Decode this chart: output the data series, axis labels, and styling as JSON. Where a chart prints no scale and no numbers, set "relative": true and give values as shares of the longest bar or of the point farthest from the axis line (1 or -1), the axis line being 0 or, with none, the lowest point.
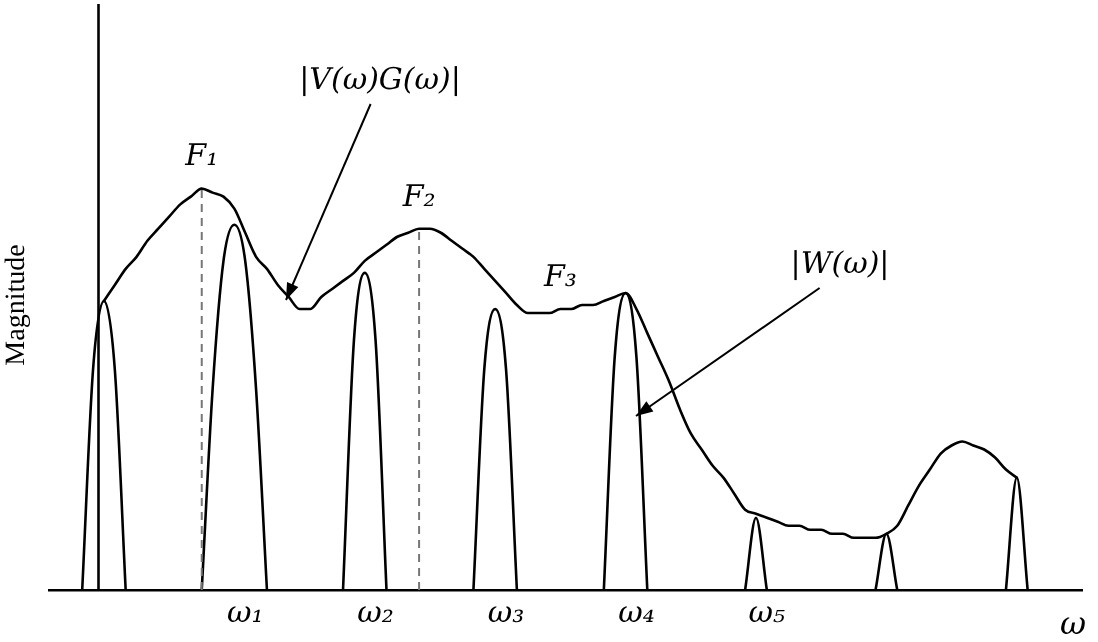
{
  "chart_data": {
    "type": "line",
    "relative": true,
    "xlabel": "ω",
    "ylabel": "Magnitude",
    "marker": "none",
    "grid": false,
    "legend": false,
    "categories": [
      null,
      null,
      null,
      null,
      null,
      null,
      null,
      null,
      null,
      null,
      null,
      null,
      null,
      null,
      null,
      null,
      null,
      null,
      "ω₁",
      null,
      null,
      null,
      null,
      null,
      null,
      null,
      null,
      null,
      null,
      null,
      "ω₂",
      null,
      null,
      null,
      null,
      null,
      null,
      null,
      null,
      null,
      null,
      null,
      "ω₃",
      null,
      null,
      null,
      null,
      null,
      null,
      null,
      null,
      null,
      null,
      null,
      "ω₄",
      null,
      null,
      null,
      null,
      null,
      null,
      null,
      null,
      null,
      null,
      null,
      "ω₅",
      null,
      null,
      null,
      null,
      null,
      null,
      null,
      null,
      null,
      null,
      null,
      null,
      null,
      null,
      null,
      null,
      null,
      null,
      null,
      null,
      null,
      null,
      null,
      null,
      null,
      null,
      null,
      null,
      null
    ],
    "series": [
      {
        "color": "#000000",
        "values": [
          null,
          null,
          null,
          null,
          null,
          0.72,
          0.76,
          0.8,
          0.83,
          0.87,
          0.9,
          0.93,
          0.96,
          0.98,
          1.0,
          0.99,
          0.98,
          0.95,
          0.89,
          0.83,
          0.8,
          0.76,
          0.73,
          0.7,
          0.7,
          0.73,
          0.75,
          0.77,
          0.79,
          0.82,
          0.84,
          0.86,
          0.88,
          0.89,
          0.9,
          0.9,
          0.89,
          0.87,
          0.85,
          0.83,
          0.8,
          0.77,
          0.74,
          0.71,
          0.69,
          0.69,
          0.69,
          0.7,
          0.7,
          0.71,
          0.71,
          0.72,
          0.73,
          0.74,
          0.7,
          0.64,
          0.58,
          0.52,
          0.45,
          0.39,
          0.35,
          0.31,
          0.28,
          0.24,
          0.2,
          0.19,
          0.18,
          0.17,
          0.16,
          0.16,
          0.15,
          0.15,
          0.14,
          0.14,
          0.13,
          0.13,
          0.13,
          0.14,
          0.16,
          0.21,
          0.26,
          0.3,
          0.34,
          0.36,
          0.37,
          0.36,
          0.35,
          0.33,
          0.3,
          0.28,
          null,
          null,
          null,
          null,
          null,
          null
        ]
      },
      {
        "color": "#000000",
        "values": [
          null,
          null,
          null,
          0,
          0.55,
          0.72,
          0.55,
          0,
          null,
          null,
          null,
          null,
          null,
          null,
          0,
          0.5,
          0.82,
          0.91,
          0.82,
          0.5,
          0,
          null,
          null,
          null,
          null,
          null,
          null,
          0,
          0.62,
          0.79,
          0.62,
          0,
          null,
          null,
          null,
          null,
          null,
          null,
          null,
          0,
          0.55,
          0.7,
          0.55,
          0,
          null,
          null,
          null,
          null,
          null,
          null,
          null,
          0,
          0.58,
          0.74,
          0.58,
          0,
          null,
          null,
          null,
          null,
          null,
          null,
          null,
          null,
          0,
          0.18,
          0,
          null,
          null,
          null,
          null,
          null,
          null,
          null,
          null,
          null,
          0,
          0.14,
          0,
          null,
          null,
          null,
          null,
          null,
          null,
          null,
          null,
          null,
          0,
          0.28,
          0,
          null,
          null,
          null,
          null,
          null
        ]
      }
    ],
    "annotations": [
      "F₁",
      "F₂",
      "F₃",
      "|V(ω)G(ω)|",
      "|W(ω)|"
    ]
  }
}
